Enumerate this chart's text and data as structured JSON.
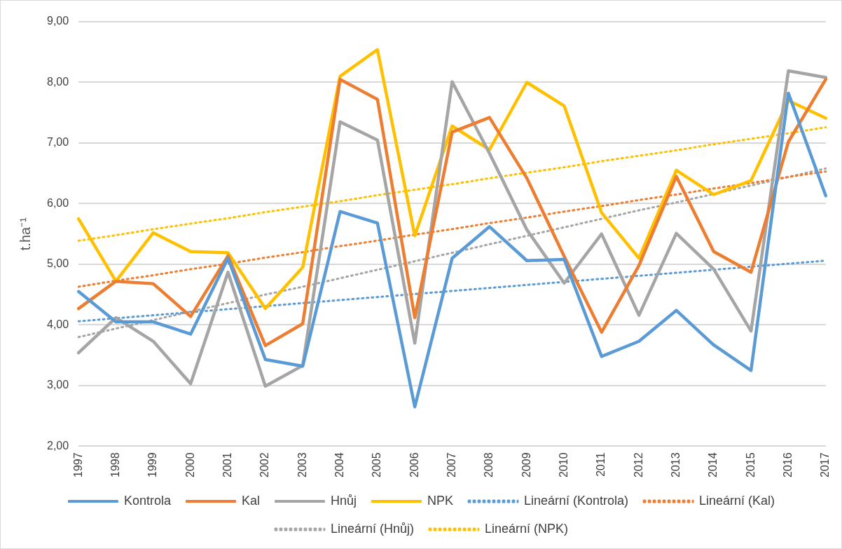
{
  "chart_data": {
    "type": "line",
    "ylabel": "t.ha⁻¹",
    "categories": [
      "1997",
      "1998",
      "1999",
      "2000",
      "2001",
      "2002",
      "2003",
      "2004",
      "2005",
      "2006",
      "2007",
      "2008",
      "2009",
      "2010",
      "2011",
      "2012",
      "2013",
      "2014",
      "2015",
      "2016",
      "2017"
    ],
    "ylim": [
      2,
      9
    ],
    "yticks": [
      {
        "value": 2,
        "label": "2,00"
      },
      {
        "value": 3,
        "label": "3,00"
      },
      {
        "value": 4,
        "label": "4,00"
      },
      {
        "value": 5,
        "label": "5,00"
      },
      {
        "value": 6,
        "label": "6,00"
      },
      {
        "value": 7,
        "label": "7,00"
      },
      {
        "value": 8,
        "label": "8,00"
      },
      {
        "value": 9,
        "label": "9,00"
      }
    ],
    "grid": "y",
    "legend": "bottom",
    "marker": "none",
    "series": [
      {
        "name": "Kontrola",
        "color": "#5b9bd5",
        "values": [
          4.55,
          4.05,
          4.05,
          3.85,
          5.1,
          3.43,
          3.32,
          5.87,
          5.68,
          2.65,
          5.1,
          5.62,
          5.06,
          5.08,
          3.48,
          3.73,
          4.24,
          3.67,
          3.25,
          7.82,
          6.13
        ]
      },
      {
        "name": "Kal",
        "color": "#ed7d31",
        "values": [
          4.27,
          4.72,
          4.68,
          4.14,
          5.14,
          3.66,
          4.02,
          8.05,
          7.72,
          4.12,
          7.18,
          7.42,
          6.42,
          5.13,
          3.88,
          4.98,
          6.45,
          5.21,
          4.87,
          7.02,
          8.05
        ]
      },
      {
        "name": "Hnůj",
        "color": "#a5a5a5",
        "values": [
          3.54,
          4.12,
          3.73,
          3.03,
          4.87,
          2.99,
          3.33,
          7.35,
          7.05,
          3.7,
          8.01,
          6.83,
          5.57,
          4.69,
          5.5,
          4.16,
          5.51,
          4.92,
          3.9,
          8.19,
          8.08
        ]
      },
      {
        "name": "NPK",
        "color": "#ffc000",
        "values": [
          5.75,
          4.72,
          5.52,
          5.21,
          5.19,
          4.27,
          4.95,
          8.1,
          8.54,
          5.47,
          7.28,
          6.89,
          8.0,
          7.61,
          5.85,
          5.1,
          6.55,
          6.15,
          6.38,
          7.7,
          7.41
        ]
      },
      {
        "name": "Lineární (Kontrola)",
        "color": "#5b9bd5",
        "line_style": "dotted",
        "values": [
          4.06,
          4.11,
          4.16,
          4.21,
          4.26,
          4.31,
          4.36,
          4.41,
          4.46,
          4.51,
          4.56,
          4.61,
          4.66,
          4.71,
          4.76,
          4.81,
          4.86,
          4.91,
          4.96,
          5.01,
          5.06
        ]
      },
      {
        "name": "Lineární (Kal)",
        "color": "#ed7d31",
        "line_style": "dotted",
        "values": [
          4.63,
          4.73,
          4.82,
          4.92,
          5.01,
          5.11,
          5.2,
          5.3,
          5.39,
          5.49,
          5.58,
          5.68,
          5.77,
          5.87,
          5.96,
          6.06,
          6.15,
          6.25,
          6.34,
          6.44,
          6.53
        ]
      },
      {
        "name": "Lineární (Hnůj)",
        "color": "#a5a5a5",
        "line_style": "dotted",
        "values": [
          3.8,
          3.94,
          4.08,
          4.22,
          4.36,
          4.5,
          4.63,
          4.77,
          4.91,
          5.05,
          5.19,
          5.33,
          5.47,
          5.61,
          5.75,
          5.89,
          6.02,
          6.16,
          6.3,
          6.44,
          6.58
        ]
      },
      {
        "name": "Lineární (NPK)",
        "color": "#ffc000",
        "line_style": "dotted",
        "values": [
          5.39,
          5.48,
          5.58,
          5.67,
          5.76,
          5.86,
          5.95,
          6.04,
          6.14,
          6.23,
          6.32,
          6.42,
          6.51,
          6.6,
          6.7,
          6.79,
          6.88,
          6.98,
          7.07,
          7.16,
          7.26
        ]
      }
    ]
  }
}
